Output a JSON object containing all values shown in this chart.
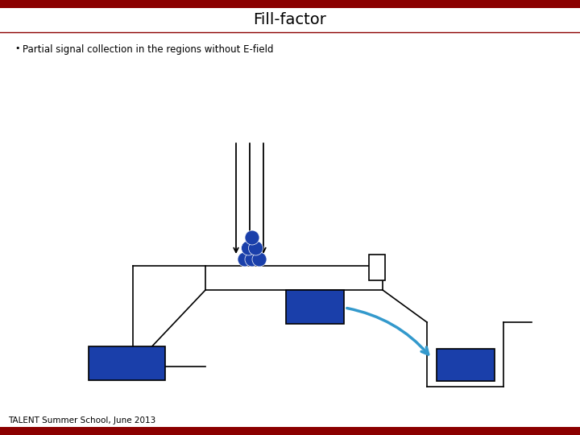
{
  "title": "Fill-factor",
  "bullet_text": "Partial signal collection in the regions without E-field",
  "footer_text": "TALENT Summer School, June 2013",
  "background_color": "#ffffff",
  "header_bar_color": "#8B0000",
  "title_color": "#000000",
  "bullet_color": "#000000",
  "blue_color": "#1a3faa",
  "light_blue_arrow_color": "#3399cc",
  "box_outline_color": "#000000"
}
